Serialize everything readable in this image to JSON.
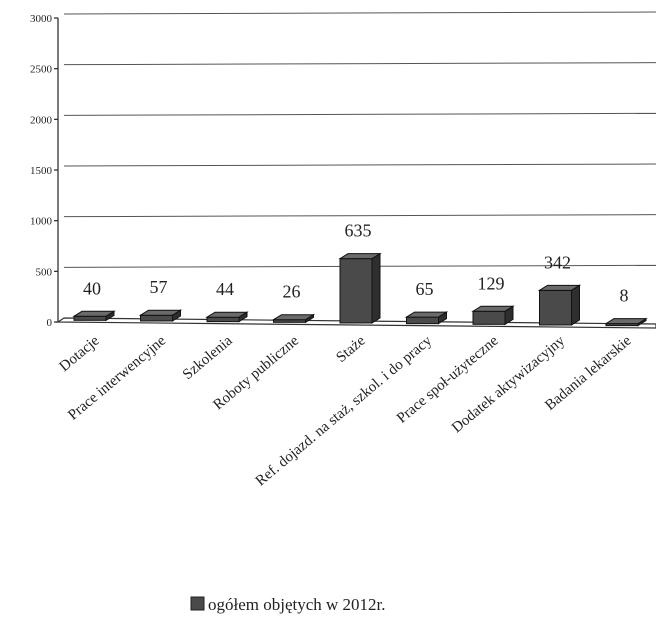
{
  "chart_data": {
    "type": "bar",
    "categories": [
      "Dotacje",
      "Prace interwencyjne",
      "Szkolenia",
      "Roboty publiczne",
      "Staże",
      "Ref. dojazd. na staż, szkol. i do pracy",
      "Prace społ-użyteczne",
      "Dodatek aktywizacyjny",
      "Badania lekarskie"
    ],
    "series": [
      {
        "name": "ogółem objętych w 2012r.",
        "values": [
          40,
          57,
          44,
          26,
          635,
          65,
          129,
          342,
          8
        ]
      }
    ],
    "value_labels": [
      "40",
      "57",
      "44",
      "26",
      "635",
      "65",
      "129",
      "342",
      "8"
    ],
    "y_ticks": [
      "0",
      "500",
      "1000",
      "1500",
      "2000",
      "2500",
      "3000"
    ],
    "ylim": [
      0,
      3000
    ],
    "grid": true,
    "legend_position": "bottom",
    "bar_color": "#4a4a4a"
  }
}
